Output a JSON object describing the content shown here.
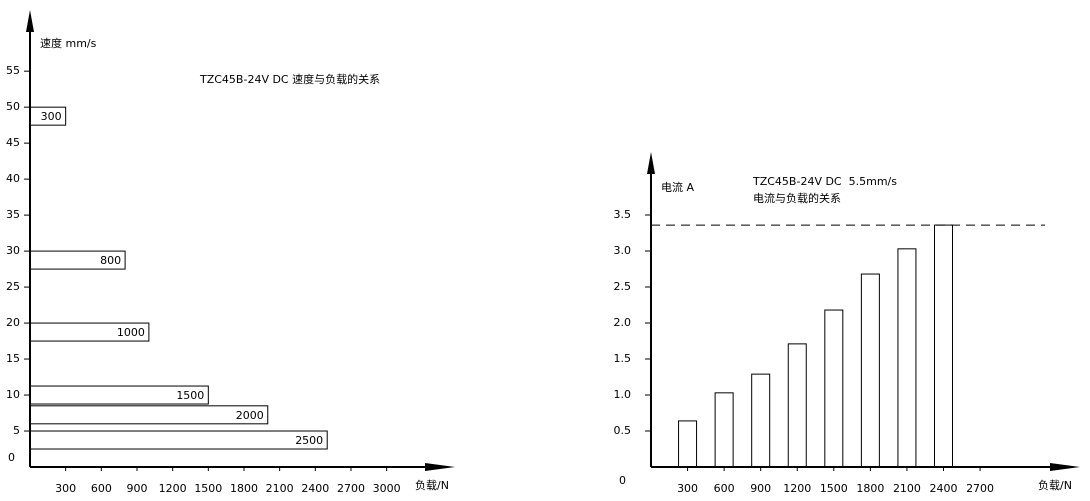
{
  "chart_data": [
    {
      "type": "hbar-range",
      "title": "TZC45B-24V DC 速度与负载的关系",
      "y_label": "速度 mm/s",
      "x_label": "负载/N",
      "loads": [
        300,
        800,
        1000,
        1500,
        2000,
        2500
      ],
      "speeds": [
        50,
        30,
        20,
        11.25,
        8.5,
        5
      ],
      "xlim": [
        0,
        3575
      ],
      "xticks": [
        300,
        600,
        900,
        1200,
        1500,
        1800,
        2100,
        2400,
        2700,
        3000
      ],
      "ylim": [
        0,
        63.5
      ],
      "yticks": [
        0,
        5,
        10,
        15,
        20,
        25,
        30,
        35,
        40,
        45,
        50,
        55
      ],
      "color": "#000000"
    },
    {
      "type": "bar",
      "title": "TZC45B-24V DC  5.5mm/s",
      "subtitle": "电流与负载的关系",
      "y_label": "电流 A",
      "x_label": "负载/N",
      "x": [
        300,
        600,
        900,
        1200,
        1500,
        1800,
        2100,
        2400
      ],
      "values": [
        0.64,
        1.03,
        1.29,
        1.71,
        2.18,
        2.68,
        3.03,
        3.36
      ],
      "hline": 3.36,
      "xlim": [
        0,
        3520
      ],
      "xticks": [
        300,
        600,
        900,
        1200,
        1500,
        1800,
        2100,
        2400,
        2700
      ],
      "ylim": [
        0,
        4.375
      ],
      "yticks": [
        0,
        {
          "value": 0.5,
          "label": "0.5"
        },
        {
          "value": 1,
          "label": "1.0"
        },
        {
          "value": 1.5,
          "label": "1.5"
        },
        {
          "value": 2,
          "label": "2.0"
        },
        {
          "value": 2.5,
          "label": "2.5"
        },
        {
          "value": 3,
          "label": "3.0"
        },
        {
          "value": 3.5,
          "label": "3.5"
        }
      ],
      "color": "#000000"
    }
  ]
}
